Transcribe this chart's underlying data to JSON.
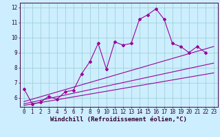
{
  "xlabel": "Windchill (Refroidissement éolien,°C)",
  "bg_color": "#cceeff",
  "line_color": "#990099",
  "xlim_min": 0,
  "xlim_max": 23,
  "ylim_min": 5.4,
  "ylim_max": 12.3,
  "xticks": [
    0,
    1,
    2,
    3,
    4,
    5,
    6,
    7,
    8,
    9,
    10,
    11,
    12,
    13,
    14,
    15,
    16,
    17,
    18,
    19,
    20,
    21,
    22,
    23
  ],
  "yticks": [
    6,
    7,
    8,
    9,
    10,
    11,
    12
  ],
  "series1_x": [
    0,
    1,
    2,
    3,
    4,
    5,
    6,
    7,
    8,
    9,
    10,
    11,
    12,
    13,
    14,
    15,
    16,
    17,
    18,
    19,
    20,
    21,
    22
  ],
  "series1_y": [
    6.6,
    5.6,
    5.7,
    6.1,
    5.9,
    6.4,
    6.5,
    7.6,
    8.4,
    9.6,
    7.9,
    9.7,
    9.5,
    9.6,
    11.2,
    11.5,
    11.9,
    11.2,
    9.6,
    9.4,
    9.0,
    9.4,
    9.0
  ],
  "trend_lines": [
    {
      "x": [
        0,
        23
      ],
      "y": [
        5.75,
        9.4
      ]
    },
    {
      "x": [
        0,
        23
      ],
      "y": [
        5.6,
        8.3
      ]
    },
    {
      "x": [
        0,
        23
      ],
      "y": [
        5.5,
        7.65
      ]
    }
  ],
  "marker": "D",
  "markersize": 2.0,
  "linewidth": 0.8,
  "grid_color": "#99cccc",
  "xlabel_fontsize": 6.5,
  "tick_fontsize": 5.5
}
